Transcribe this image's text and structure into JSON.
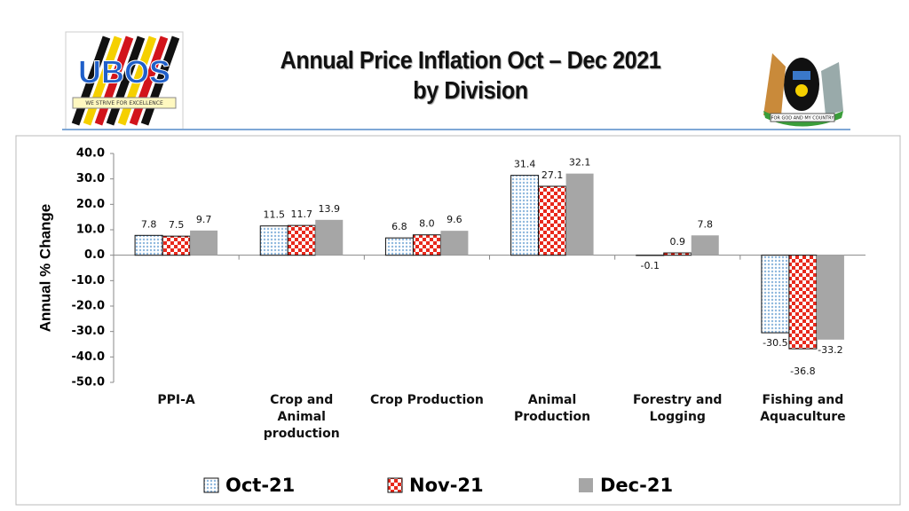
{
  "header": {
    "title": [
      "Annual Price Inflation Oct – Dec 2021",
      "by Division"
    ],
    "logo_text": "UBOS",
    "logo_motto": "WE STRIVE FOR EXCELLENCE",
    "crest_motto": "FOR GOD AND MY COUNTRY"
  },
  "chart_data": {
    "type": "bar",
    "y_label": "Annual % Change",
    "categories": [
      "PPI-A",
      "Crop and Animal production",
      "Crop Production",
      "Animal Production",
      "Forestry and Logging",
      "Fishing and Aquaculture"
    ],
    "series": [
      {
        "name": "Oct-21",
        "color": "#bdd7ee",
        "pattern": "dots",
        "values": [
          7.8,
          11.5,
          6.8,
          31.4,
          -0.1,
          -30.5
        ],
        "value_labels": [
          "7.8",
          "11.5",
          "6.8",
          "31.4",
          "-0.1",
          "-30.5"
        ]
      },
      {
        "name": "Nov-21",
        "color": "#e8291c",
        "pattern": "checker",
        "values": [
          7.5,
          11.7,
          8.0,
          27.1,
          0.9,
          -36.8
        ],
        "value_labels": [
          "7.5",
          "11.7",
          "8.0",
          "27.1",
          "0.9",
          "-36.8"
        ]
      },
      {
        "name": "Dec-21",
        "color": "#a6a6a6",
        "pattern": "solid",
        "values": [
          9.7,
          13.9,
          9.6,
          32.1,
          7.8,
          -33.2
        ],
        "value_labels": [
          "9.7",
          "13.9",
          "9.6",
          "32.1",
          "7.8",
          "-33.2"
        ]
      }
    ],
    "ylim": [
      -50,
      40
    ],
    "yticks": [
      {
        "value": -50,
        "label": "-50.0"
      },
      {
        "value": -40,
        "label": "-40.0"
      },
      {
        "value": -30,
        "label": "-30.0"
      },
      {
        "value": -20,
        "label": "-20.0"
      },
      {
        "value": -10,
        "label": "-10.0"
      },
      {
        "value": 0,
        "label": "0.0"
      },
      {
        "value": 10,
        "label": "10.0"
      },
      {
        "value": 20,
        "label": "20.0"
      },
      {
        "value": 30,
        "label": "30.0"
      },
      {
        "value": 40,
        "label": "40.0"
      }
    ],
    "grid": false,
    "legend": "bottom"
  }
}
